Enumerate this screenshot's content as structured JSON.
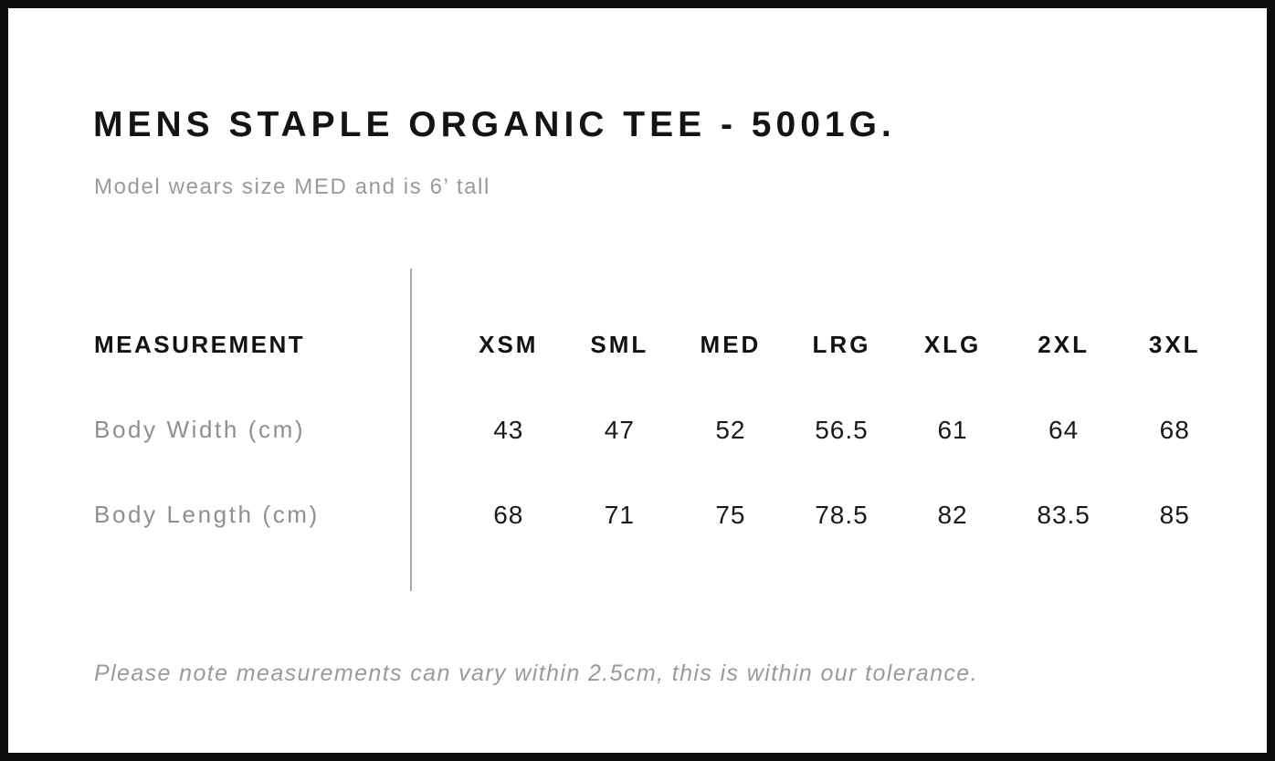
{
  "page": {
    "title": "MENS STAPLE ORGANIC TEE - 5001G.",
    "subtitle": "Model wears size MED and is 6’ tall",
    "note": "Please note measurements can vary within 2.5cm, this is within our tolerance."
  },
  "table": {
    "header_label": "MEASUREMENT",
    "size_headers": [
      "XSM",
      "SML",
      "MED",
      "LRG",
      "XLG",
      "2XL",
      "3XL"
    ],
    "rows": [
      {
        "label": "Body Width (cm)",
        "values": [
          "43",
          "47",
          "52",
          "56.5",
          "61",
          "64",
          "68"
        ]
      },
      {
        "label": "Body Length (cm)",
        "values": [
          "68",
          "71",
          "75",
          "78.5",
          "82",
          "83.5",
          "85"
        ]
      }
    ]
  },
  "chart_data": {
    "type": "table",
    "title": "MENS STAPLE ORGANIC TEE - 5001G.",
    "columns": [
      "MEASUREMENT",
      "XSM",
      "SML",
      "MED",
      "LRG",
      "XLG",
      "2XL",
      "3XL"
    ],
    "rows": [
      [
        "Body Width (cm)",
        43,
        47,
        52,
        56.5,
        61,
        64,
        68
      ],
      [
        "Body Length (cm)",
        68,
        71,
        75,
        78.5,
        82,
        83.5,
        85
      ]
    ],
    "footnote": "Please note measurements can vary within 2.5cm, this is within our tolerance."
  },
  "colors": {
    "background": "#ffffff",
    "border": "#0d0d0d",
    "text_primary": "#141414",
    "text_muted": "#9a9a9a",
    "divider": "#a8a8a8"
  }
}
